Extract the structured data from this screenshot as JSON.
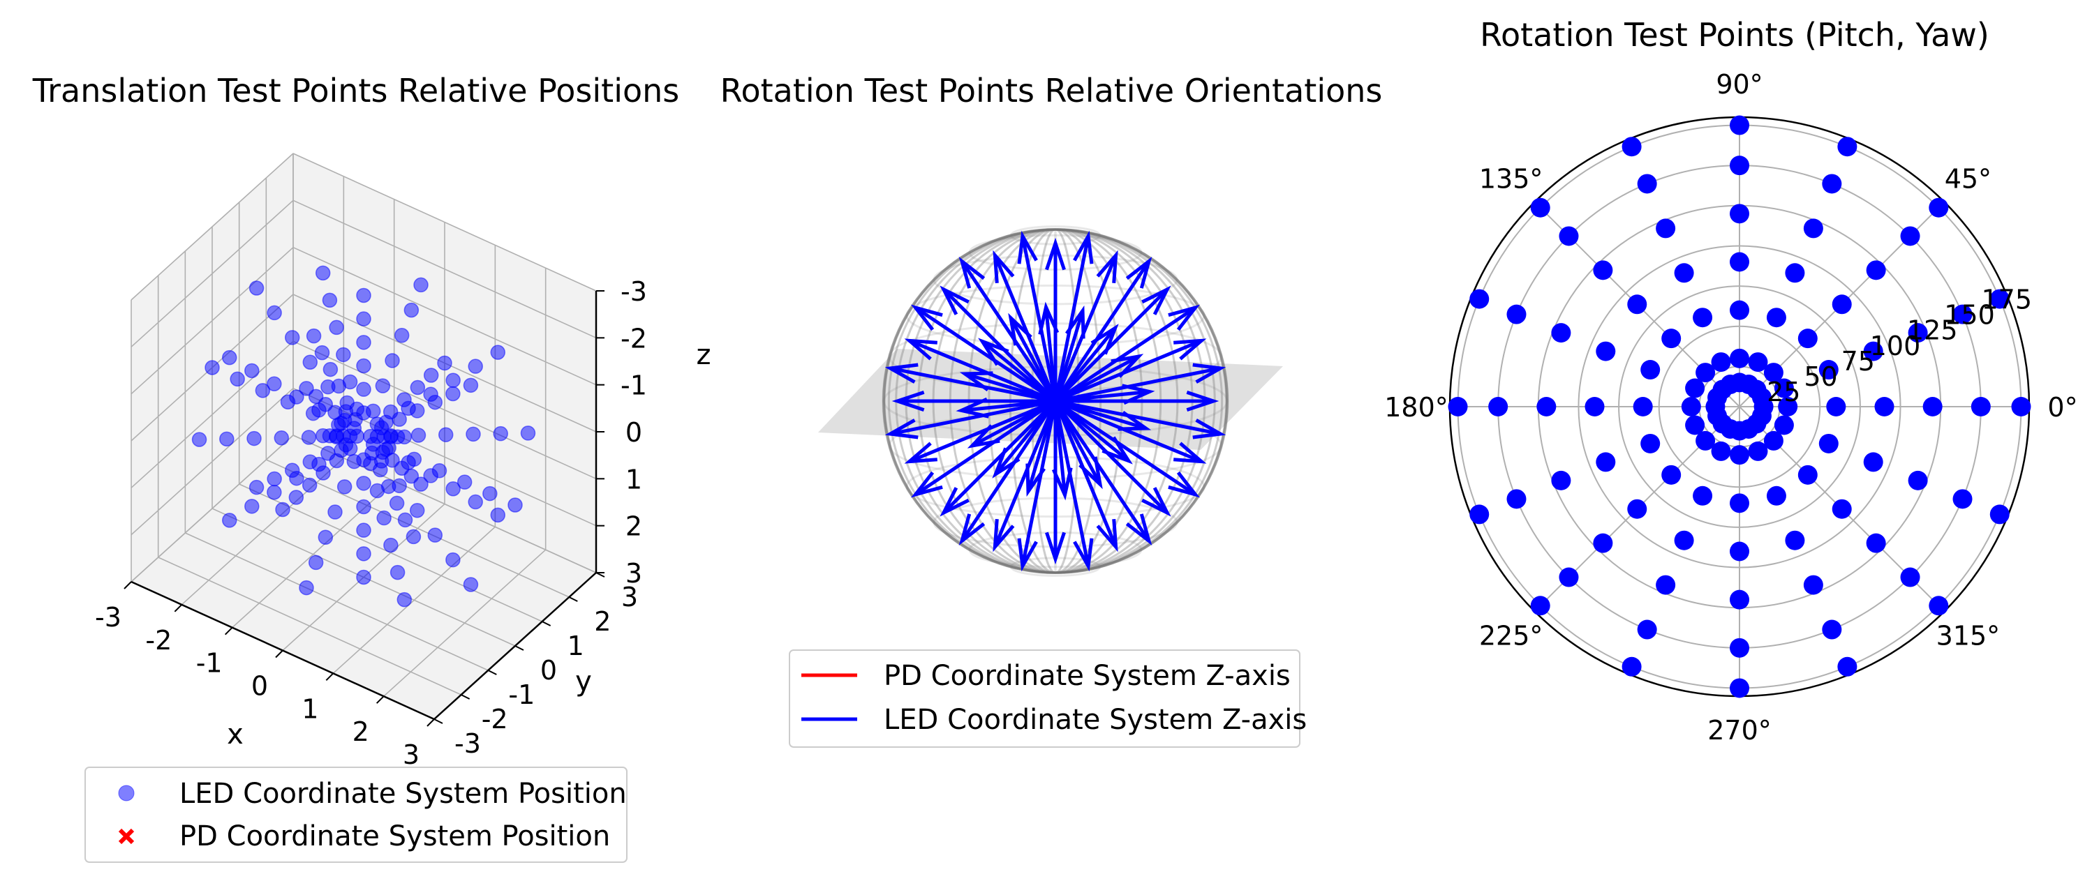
{
  "chart_data": [
    {
      "type": "scatter3d",
      "title": "Translation Test Points Relative Positions",
      "xlabel": "x",
      "ylabel": "y",
      "zlabel": "z",
      "xlim": [
        -3,
        3
      ],
      "ylim": [
        -3,
        3
      ],
      "zlim": [
        -3,
        3
      ],
      "xticks": [
        "-3",
        "-2",
        "-1",
        "0",
        "1",
        "2",
        "3"
      ],
      "yticks": [
        "-3",
        "-2",
        "-1",
        "0",
        "1",
        "2",
        "3"
      ],
      "zticks": [
        "-3",
        "-2",
        "-1",
        "0",
        "1",
        "2",
        "3"
      ],
      "grid": true,
      "legend_placement": "bottom",
      "series": [
        {
          "name": "LED Coordinate System Position",
          "marker": "circle",
          "color": "#0000ff",
          "alpha": 0.5,
          "pattern": {
            "distances": [
              0.5,
              1,
              1.5,
              2,
              2.5,
              3
            ],
            "directions": "26 lattice directions (±1, 0 combinations)"
          }
        },
        {
          "name": "PD Coordinate System Position",
          "marker": "x",
          "color": "#ff0000",
          "points": [
            [
              0,
              0,
              0
            ]
          ]
        }
      ]
    },
    {
      "type": "quiver3d",
      "title": "Rotation Test Points Relative Orientations",
      "grid": false,
      "legend_placement": "bottom",
      "series": [
        {
          "name": "PD Coordinate System Z-axis",
          "color": "#ff0000"
        },
        {
          "name": "LED Coordinate System Z-axis",
          "color": "#0000ff"
        }
      ]
    },
    {
      "type": "polar-scatter",
      "title": "Rotation Test Points (Pitch, Yaw)",
      "angle_ticks": [
        "0°",
        "45°",
        "90°",
        "135°",
        "180°",
        "225°",
        "270°",
        "315°"
      ],
      "radial_ticks": [
        "25",
        "50",
        "75",
        "100",
        "125",
        "150",
        "175"
      ],
      "rmax": 180,
      "color": "#0000ff",
      "points_pattern": {
        "yaw_deg": [
          0,
          22.5,
          45,
          67.5,
          90,
          112.5,
          135,
          157.5,
          180,
          202.5,
          225,
          247.5,
          270,
          292.5,
          315,
          337.5
        ],
        "pitch_deg": [
          15,
          30,
          60,
          90,
          120,
          150,
          175
        ]
      }
    }
  ]
}
